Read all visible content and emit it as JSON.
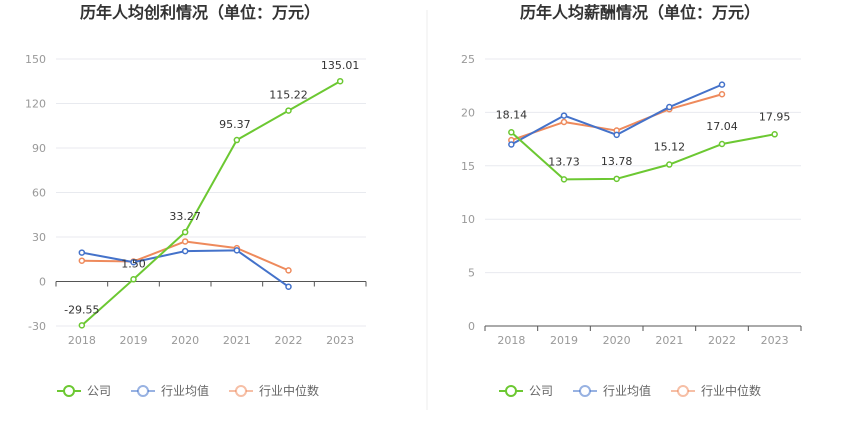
{
  "chart_data": [
    {
      "type": "line",
      "title": "历年人均创利情况（单位：万元）",
      "xlabel": "",
      "ylabel": "",
      "x": [
        "2018",
        "2019",
        "2020",
        "2021",
        "2022",
        "2023"
      ],
      "ylim": [
        -30,
        150
      ],
      "yticks": [
        -30,
        0,
        30,
        60,
        90,
        120,
        150
      ],
      "grid": true,
      "legend": "bottom-center",
      "series": [
        {
          "name": "公司",
          "color": "#6cc832",
          "values": [
            -29.55,
            1.5,
            33.27,
            95.37,
            115.22,
            135.01
          ],
          "labels": [
            "-29.55",
            "1.50",
            "33.27",
            "95.37",
            "115.22",
            "135.01"
          ]
        },
        {
          "name": "行业均值",
          "color": "#4472ca",
          "values": [
            19.5,
            13.0,
            20.5,
            21.0,
            -3.5,
            null
          ]
        },
        {
          "name": "行业中位数",
          "color": "#ee8a5c",
          "values": [
            14.0,
            13.5,
            27.0,
            22.5,
            7.5,
            null
          ]
        }
      ]
    },
    {
      "type": "line",
      "title": "历年人均薪酬情况（单位：万元）",
      "xlabel": "",
      "ylabel": "",
      "x": [
        "2018",
        "2019",
        "2020",
        "2021",
        "2022",
        "2023"
      ],
      "ylim": [
        0,
        25
      ],
      "yticks": [
        0,
        5,
        10,
        15,
        20,
        25
      ],
      "grid": true,
      "legend": "bottom-center",
      "series": [
        {
          "name": "公司",
          "color": "#6cc832",
          "values": [
            18.14,
            13.73,
            13.78,
            15.12,
            17.04,
            17.95
          ],
          "labels": [
            "18.14",
            "13.73",
            "13.78",
            "15.12",
            "17.04",
            "17.95"
          ]
        },
        {
          "name": "行业均值",
          "color": "#4472ca",
          "values": [
            17.0,
            19.7,
            17.9,
            20.5,
            22.6,
            null
          ]
        },
        {
          "name": "行业中位数",
          "color": "#ee8a5c",
          "values": [
            17.4,
            19.1,
            18.3,
            20.3,
            21.7,
            null
          ]
        }
      ]
    }
  ]
}
